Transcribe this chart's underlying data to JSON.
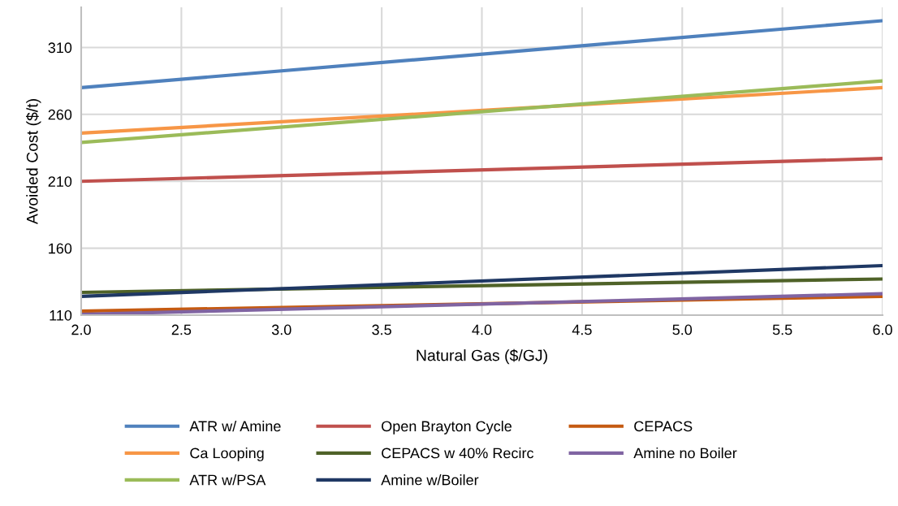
{
  "chart_data": {
    "type": "line",
    "xlabel": "Natural Gas ($/GJ)",
    "ylabel": "Avoided Cost ($/t)",
    "x": [
      2.0,
      6.0
    ],
    "series": [
      {
        "name": "ATR w/ Amine",
        "color": "#4f81bd",
        "values": [
          280,
          330
        ]
      },
      {
        "name": "Ca Looping",
        "color": "#f79646",
        "values": [
          246,
          280
        ]
      },
      {
        "name": "ATR w/PSA",
        "color": "#9bbb59",
        "values": [
          239,
          285
        ]
      },
      {
        "name": "Open Brayton Cycle",
        "color": "#c0504d",
        "values": [
          210,
          227
        ]
      },
      {
        "name": "CEPACS w 40% Recirc",
        "color": "#4f6228",
        "values": [
          127,
          137
        ]
      },
      {
        "name": "Amine w/Boiler",
        "color": "#1f3864",
        "values": [
          124,
          147
        ]
      },
      {
        "name": "CEPACS",
        "color": "#c55a11",
        "values": [
          113,
          124
        ]
      },
      {
        "name": "Amine no Boiler",
        "color": "#8064a2",
        "values": [
          110.5,
          126
        ]
      }
    ],
    "xlim": [
      2.0,
      6.0
    ],
    "xticks": [
      {
        "value": 2.0,
        "label": "2.0"
      },
      {
        "value": 2.5,
        "label": "2.5"
      },
      {
        "value": 3.0,
        "label": "3.0"
      },
      {
        "value": 3.5,
        "label": "3.5"
      },
      {
        "value": 4.0,
        "label": "4.0"
      },
      {
        "value": 4.5,
        "label": "4.5"
      },
      {
        "value": 5.0,
        "label": "5.0"
      },
      {
        "value": 5.5,
        "label": "5.5"
      },
      {
        "value": 6.0,
        "label": "6.0"
      }
    ],
    "ylim": [
      110,
      340
    ],
    "yticks": [
      110,
      160,
      210,
      260,
      310
    ],
    "grid": true,
    "legend": "bottom",
    "marker": "none",
    "line_style": "solid"
  }
}
